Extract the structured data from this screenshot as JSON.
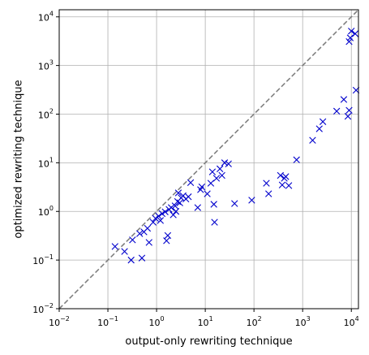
{
  "chart_data": {
    "type": "scatter",
    "xlabel": "output-only rewriting technique",
    "ylabel": "optimized rewriting technique",
    "xscale": "log",
    "yscale": "log",
    "xlim": [
      0.01,
      14000
    ],
    "ylim": [
      0.01,
      14000
    ],
    "x_ticks": [
      {
        "base": "10",
        "exp": "−2",
        "value": 0.01
      },
      {
        "base": "10",
        "exp": "−1",
        "value": 0.1
      },
      {
        "base": "10",
        "exp": "0",
        "value": 1
      },
      {
        "base": "10",
        "exp": "1",
        "value": 10
      },
      {
        "base": "10",
        "exp": "2",
        "value": 100
      },
      {
        "base": "10",
        "exp": "3",
        "value": 1000
      },
      {
        "base": "10",
        "exp": "4",
        "value": 10000
      }
    ],
    "y_ticks": [
      {
        "base": "10",
        "exp": "−2",
        "value": 0.01
      },
      {
        "base": "10",
        "exp": "−1",
        "value": 0.1
      },
      {
        "base": "10",
        "exp": "0",
        "value": 1
      },
      {
        "base": "10",
        "exp": "1",
        "value": 10
      },
      {
        "base": "10",
        "exp": "2",
        "value": 100
      },
      {
        "base": "10",
        "exp": "3",
        "value": 1000
      },
      {
        "base": "10",
        "exp": "4",
        "value": 10000
      }
    ],
    "grid": true,
    "marker": "x",
    "marker_color": "#0000cc",
    "diagonal_color": "#808080",
    "points": [
      {
        "x": 0.14,
        "y": 0.19
      },
      {
        "x": 0.22,
        "y": 0.15
      },
      {
        "x": 0.3,
        "y": 0.1
      },
      {
        "x": 0.32,
        "y": 0.26
      },
      {
        "x": 0.45,
        "y": 0.35
      },
      {
        "x": 0.5,
        "y": 0.11
      },
      {
        "x": 0.55,
        "y": 0.38
      },
      {
        "x": 0.7,
        "y": 0.23
      },
      {
        "x": 0.65,
        "y": 0.45
      },
      {
        "x": 0.85,
        "y": 0.6
      },
      {
        "x": 0.95,
        "y": 0.72
      },
      {
        "x": 1.1,
        "y": 0.8
      },
      {
        "x": 1.2,
        "y": 0.65
      },
      {
        "x": 1.3,
        "y": 0.9
      },
      {
        "x": 1.5,
        "y": 0.98
      },
      {
        "x": 1.6,
        "y": 0.25
      },
      {
        "x": 1.7,
        "y": 0.32
      },
      {
        "x": 1.8,
        "y": 1.1
      },
      {
        "x": 2.0,
        "y": 1.2
      },
      {
        "x": 2.2,
        "y": 0.85
      },
      {
        "x": 2.4,
        "y": 1.3
      },
      {
        "x": 2.5,
        "y": 1.0
      },
      {
        "x": 2.7,
        "y": 1.6
      },
      {
        "x": 2.8,
        "y": 2.4
      },
      {
        "x": 3.0,
        "y": 1.5
      },
      {
        "x": 3.2,
        "y": 1.9
      },
      {
        "x": 3.5,
        "y": 2.1
      },
      {
        "x": 4.0,
        "y": 1.8
      },
      {
        "x": 4.5,
        "y": 2.0
      },
      {
        "x": 5.0,
        "y": 3.9
      },
      {
        "x": 7.0,
        "y": 1.2
      },
      {
        "x": 8.0,
        "y": 2.8
      },
      {
        "x": 8.5,
        "y": 3.2
      },
      {
        "x": 11.0,
        "y": 2.3
      },
      {
        "x": 13.0,
        "y": 3.8
      },
      {
        "x": 14.0,
        "y": 6.5
      },
      {
        "x": 15.0,
        "y": 1.4
      },
      {
        "x": 15.5,
        "y": 0.6
      },
      {
        "x": 17.0,
        "y": 4.8
      },
      {
        "x": 20.0,
        "y": 7.5
      },
      {
        "x": 22.0,
        "y": 5.5
      },
      {
        "x": 25.0,
        "y": 10.0
      },
      {
        "x": 30.0,
        "y": 9.5
      },
      {
        "x": 40.0,
        "y": 1.45
      },
      {
        "x": 90.0,
        "y": 1.7
      },
      {
        "x": 180.0,
        "y": 3.8
      },
      {
        "x": 200.0,
        "y": 2.3
      },
      {
        "x": 350.0,
        "y": 5.5
      },
      {
        "x": 380.0,
        "y": 3.5
      },
      {
        "x": 420.0,
        "y": 4.8
      },
      {
        "x": 450.0,
        "y": 5.2
      },
      {
        "x": 520.0,
        "y": 3.4
      },
      {
        "x": 750.0,
        "y": 11.5
      },
      {
        "x": 1600.0,
        "y": 29.0
      },
      {
        "x": 2200.0,
        "y": 50.0
      },
      {
        "x": 2600.0,
        "y": 70.0
      },
      {
        "x": 5000.0,
        "y": 115.0
      },
      {
        "x": 7000.0,
        "y": 200.0
      },
      {
        "x": 8500.0,
        "y": 90.0
      },
      {
        "x": 9000.0,
        "y": 120.0
      },
      {
        "x": 9000.0,
        "y": 3100.0
      },
      {
        "x": 9500.0,
        "y": 3700.0
      },
      {
        "x": 10000.0,
        "y": 5100.0
      },
      {
        "x": 12000.0,
        "y": 4500.0
      },
      {
        "x": 12500.0,
        "y": 310.0
      }
    ]
  }
}
